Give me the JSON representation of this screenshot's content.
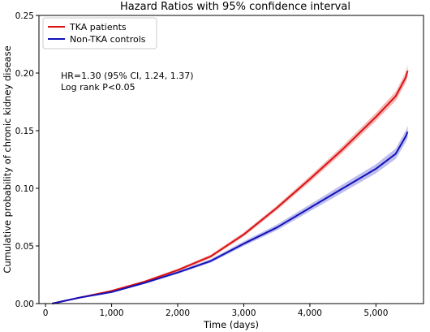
{
  "chart_data": {
    "type": "line",
    "title": "Hazard Ratios with 95% confidence interval",
    "xlabel": "Time (days)",
    "ylabel": "Cumulative probability of chronic kidney disease",
    "xlim": [
      -100,
      5720
    ],
    "ylim": [
      0,
      0.25
    ],
    "x_ticks": [
      0,
      1000,
      2000,
      3000,
      4000,
      5000
    ],
    "x_tick_labels": [
      "0",
      "1,000",
      "2,000",
      "3,000",
      "4,000",
      "5,000"
    ],
    "y_ticks": [
      0,
      0.05,
      0.1,
      0.15,
      0.2,
      0.25
    ],
    "y_tick_labels": [
      "0.00",
      "0.05",
      "0.10",
      "0.15",
      "0.20",
      "0.25"
    ],
    "grid": false,
    "legend_position": "top-left",
    "annotations": [
      "HR=1.30 (95% CI, 1.24, 1.37)",
      "Log rank P<0.05"
    ],
    "series": [
      {
        "name": "TKA patients",
        "color": "#dd1111",
        "band_color": "#f0a0a0",
        "x": [
          100,
          500,
          1000,
          1500,
          2000,
          2500,
          3000,
          3500,
          4000,
          4500,
          5000,
          5300,
          5450,
          5480
        ],
        "y": [
          0.0,
          0.005,
          0.011,
          0.019,
          0.029,
          0.041,
          0.06,
          0.083,
          0.108,
          0.134,
          0.162,
          0.18,
          0.196,
          0.202
        ],
        "ci_halfwidth": [
          0.0,
          0.0005,
          0.0008,
          0.001,
          0.0012,
          0.0015,
          0.0018,
          0.002,
          0.0025,
          0.003,
          0.0035,
          0.004,
          0.0045,
          0.0045
        ]
      },
      {
        "name": "Non-TKA controls",
        "color": "#1111bb",
        "band_color": "#a8a8e8",
        "x": [
          100,
          500,
          1000,
          1500,
          2000,
          2500,
          3000,
          3500,
          4000,
          4500,
          5000,
          5300,
          5450,
          5480
        ],
        "y": [
          0.0,
          0.005,
          0.01,
          0.018,
          0.027,
          0.037,
          0.052,
          0.066,
          0.083,
          0.1,
          0.117,
          0.13,
          0.145,
          0.149
        ],
        "ci_halfwidth": [
          0.0,
          0.0005,
          0.0008,
          0.001,
          0.0012,
          0.0015,
          0.002,
          0.0025,
          0.003,
          0.0035,
          0.004,
          0.0045,
          0.005,
          0.005
        ]
      }
    ]
  }
}
